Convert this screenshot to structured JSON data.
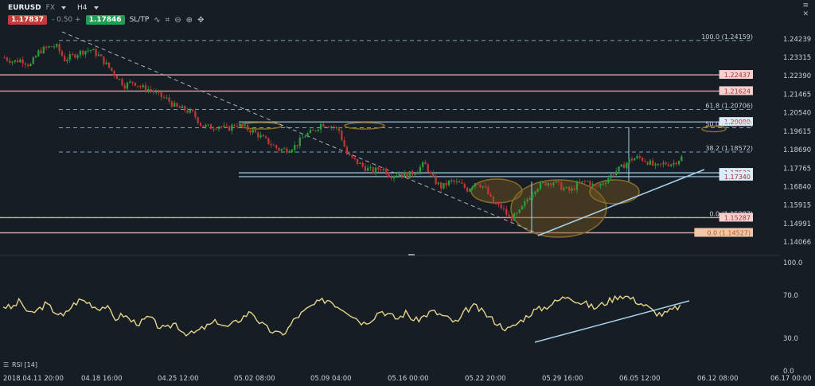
{
  "toolbar": {
    "symbol": "EURUSD",
    "asset_class": "FX",
    "timeframe": "H4",
    "bid": "1.17837",
    "spread": "- 0.50 +",
    "ask": "1.17846",
    "sltp": "SL/TP",
    "tools": [
      {
        "name": "indicator-icon",
        "glyph": "∿"
      },
      {
        "name": "compare-icon",
        "glyph": "⌗"
      },
      {
        "name": "zoom-out-icon",
        "glyph": "⊖"
      },
      {
        "name": "zoom-in-icon",
        "glyph": "⊕"
      },
      {
        "name": "crosshair-icon",
        "glyph": "✥"
      }
    ]
  },
  "window_icons": {
    "menu": "≡",
    "close": "✕"
  },
  "rsi_label": "RSI [14]",
  "colors": {
    "background": "#161d24",
    "candle_up": "#2a9d3b",
    "candle_down": "#c23636",
    "fib_line": "#7fa2b8",
    "level_line": "#d9a3a3",
    "channel_line": "#a8d4ec",
    "rsi_line": "#e5d48a",
    "ellipse": "#8a6c2a"
  },
  "chart_data": [
    {
      "type": "candlestick",
      "title": "",
      "x": [
        "2018.04.11 20:00",
        "04.18 16:00",
        "04.25 12:00",
        "05.02 08:00",
        "05.09 04:00",
        "05.16 00:00",
        "05.22 20:00",
        "05.29 16:00",
        "06.05 12:00",
        "06.12 08:00",
        "06.17 00:00"
      ],
      "ylim": [
        1.1375,
        1.2475
      ],
      "y_ticks": [
        "1.24239",
        "1.23315",
        "1.22390",
        "1.21465",
        "1.20540",
        "1.19615",
        "1.18690",
        "1.17765",
        "1.16840",
        "1.15915",
        "1.14991",
        "1.14066"
      ],
      "close_path": [
        1.233,
        1.231,
        1.232,
        1.229,
        1.236,
        1.238,
        1.239,
        1.232,
        1.234,
        1.236,
        1.237,
        1.234,
        1.229,
        1.224,
        1.219,
        1.221,
        1.218,
        1.217,
        1.214,
        1.212,
        1.208,
        1.207,
        1.205,
        1.199,
        1.198,
        1.199,
        1.197,
        1.2,
        1.198,
        1.196,
        1.193,
        1.19,
        1.187,
        1.187,
        1.189,
        1.194,
        1.196,
        1.2,
        1.199,
        1.197,
        1.184,
        1.181,
        1.178,
        1.176,
        1.178,
        1.174,
        1.175,
        1.174,
        1.176,
        1.18,
        1.172,
        1.168,
        1.171,
        1.17,
        1.167,
        1.171,
        1.168,
        1.16,
        1.158,
        1.152,
        1.155,
        1.162,
        1.168,
        1.17,
        1.171,
        1.168,
        1.166,
        1.17,
        1.171,
        1.168,
        1.171,
        1.175,
        1.178,
        1.182,
        1.183,
        1.181,
        1.178,
        1.18,
        1.18,
        1.183
      ],
      "levels": [
        {
          "label": "100.0 (1.24159)",
          "value": 1.24159,
          "style": "fib"
        },
        {
          "label": "1.22437",
          "value": 1.22437,
          "style": "level"
        },
        {
          "label": "1.21624",
          "value": 1.21624,
          "style": "level"
        },
        {
          "label": "61.8 (1.20706)",
          "value": 1.20706,
          "style": "fib"
        },
        {
          "label": "1.20080",
          "value": 1.2008,
          "style": "channel"
        },
        {
          "label": "50.0 (1.19789)",
          "value": 1.19789,
          "style": "fib"
        },
        {
          "label": "38.2 (1.18572)",
          "value": 1.18572,
          "style": "fib"
        },
        {
          "label": "1.17532",
          "value": 1.17532,
          "style": "channel"
        },
        {
          "label": "1.17340",
          "value": 1.1734,
          "style": "channel"
        },
        {
          "label": "0.0 (1.15287)",
          "value": 1.15287,
          "style": "fib"
        },
        {
          "label": "1.15287",
          "value": 1.15287,
          "style": "level"
        },
        {
          "label": "0.0 (1.14527)",
          "value": 1.14527,
          "style": "level"
        }
      ]
    },
    {
      "type": "line",
      "title": "RSI [14]",
      "ylim": [
        0,
        100
      ],
      "y_ticks": [
        "100.0",
        "70.0",
        "30.0",
        "0.0"
      ],
      "values": [
        60,
        58,
        65,
        52,
        56,
        62,
        55,
        50,
        60,
        66,
        63,
        58,
        60,
        48,
        52,
        46,
        44,
        50,
        42,
        38,
        45,
        36,
        34,
        38,
        42,
        46,
        40,
        44,
        50,
        55,
        44,
        38,
        34,
        36,
        48,
        54,
        60,
        64,
        66,
        60,
        56,
        50,
        44,
        48,
        56,
        52,
        48,
        54,
        46,
        50,
        55,
        52,
        48,
        44,
        56,
        60,
        54,
        48,
        42,
        38,
        44,
        50,
        56,
        58,
        62,
        66,
        70,
        64,
        62,
        58,
        62,
        66,
        70,
        68,
        64,
        60,
        54,
        52,
        56,
        60
      ]
    }
  ]
}
